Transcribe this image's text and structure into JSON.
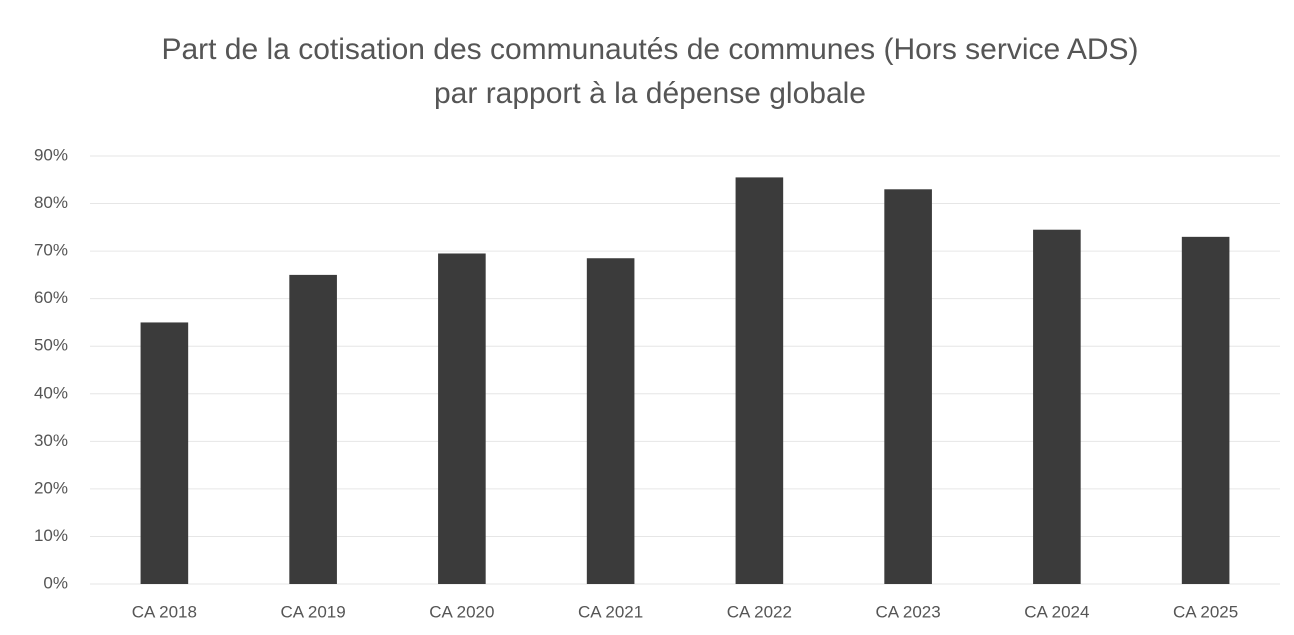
{
  "chart_data": {
    "type": "bar",
    "title": "Part de la cotisation des communautés de communes (Hors service ADS) par rapport à la dépense globale",
    "categories": [
      "CA 2018",
      "CA 2019",
      "CA 2020",
      "CA 2021",
      "CA 2022",
      "CA 2023",
      "CA 2024",
      "CA 2025"
    ],
    "values": [
      55,
      65,
      69.5,
      68.5,
      85.5,
      83,
      74.5,
      73
    ],
    "color": "#3b3b3b",
    "ylim": [
      0,
      90
    ],
    "yticks": [
      {
        "value": 0,
        "label": "0%"
      },
      {
        "value": 10,
        "label": "10%"
      },
      {
        "value": 20,
        "label": "20%"
      },
      {
        "value": 30,
        "label": "30%"
      },
      {
        "value": 40,
        "label": "40%"
      },
      {
        "value": 50,
        "label": "50%"
      },
      {
        "value": 60,
        "label": "60%"
      },
      {
        "value": 70,
        "label": "70%"
      },
      {
        "value": 80,
        "label": "80%"
      },
      {
        "value": 90,
        "label": "90%"
      }
    ],
    "grid": true
  }
}
